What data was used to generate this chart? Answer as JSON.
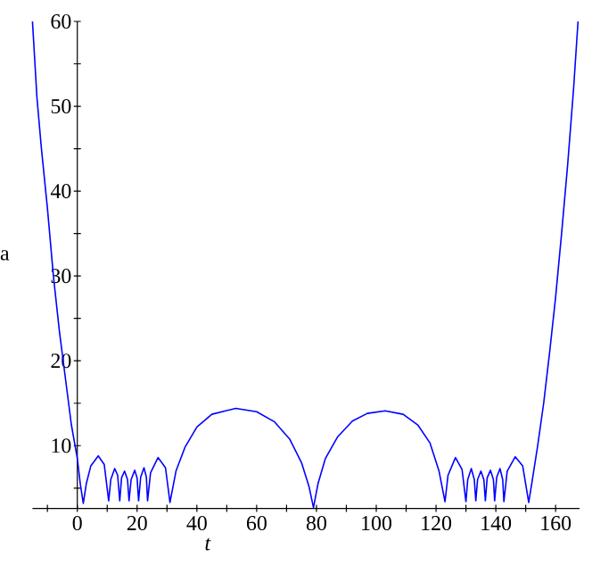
{
  "chart_data": {
    "type": "line",
    "xlabel": "t",
    "ylabel": "a",
    "xlim": [
      -15,
      168
    ],
    "ylim": [
      2.6,
      60
    ],
    "xticks": [
      {
        "value": -10,
        "label": null
      },
      0,
      {
        "value": 10,
        "label": null
      },
      20,
      {
        "value": 30,
        "label": null
      },
      40,
      {
        "value": 50,
        "label": null
      },
      60,
      {
        "value": 70,
        "label": null
      },
      80,
      {
        "value": 90,
        "label": null
      },
      100,
      {
        "value": 110,
        "label": null
      },
      120,
      {
        "value": 130,
        "label": null
      },
      140,
      {
        "value": 150,
        "label": null
      },
      160
    ],
    "yticks": [
      {
        "value": 5,
        "label": null
      },
      10,
      {
        "value": 15,
        "label": null
      },
      20,
      {
        "value": 25,
        "label": null
      },
      30,
      {
        "value": 35,
        "label": null
      },
      40,
      {
        "value": 45,
        "label": null
      },
      50,
      {
        "value": 55,
        "label": null
      },
      60
    ],
    "grid": false,
    "marker": "none",
    "line_style": "solid",
    "series": [
      {
        "color": "#0000ff",
        "x": [
          -15,
          -13.5,
          -12,
          -10,
          -8,
          -6,
          -4,
          -2,
          0,
          1,
          2,
          3,
          4.5,
          7,
          9,
          10.5,
          11.2,
          12.5,
          13.5,
          14.2,
          14.8,
          15.8,
          16.8,
          17.3,
          18,
          19.2,
          20,
          20.5,
          21.2,
          22.3,
          23.1,
          23.5,
          24.5,
          27,
          29.5,
          31,
          33,
          36,
          40,
          45,
          53,
          60,
          66,
          71,
          75,
          77.5,
          79,
          80.5,
          83,
          87,
          92,
          97,
          103,
          109,
          114,
          118,
          121,
          123,
          124,
          126.5,
          128.7,
          130,
          130.6,
          131.8,
          132.8,
          133.3,
          133.9,
          135,
          136,
          136.5,
          137.1,
          138.2,
          139.2,
          139.6,
          140.3,
          141.4,
          142.3,
          142.7,
          143.8,
          146.5,
          149,
          151,
          152,
          154,
          156,
          158,
          160,
          162,
          164,
          166,
          167.5
        ],
        "values": [
          60,
          51,
          45,
          38,
          30,
          23.5,
          18,
          12.5,
          8.5,
          5.5,
          3.2,
          5.5,
          7.6,
          8.8,
          7.8,
          3.5,
          6,
          7.3,
          6.5,
          3.5,
          6.2,
          7,
          6,
          3.5,
          6,
          7.1,
          6.2,
          3.5,
          6.3,
          7.4,
          6.3,
          3.5,
          6.8,
          8.6,
          7.4,
          3.3,
          7,
          9.8,
          12.2,
          13.7,
          14.4,
          14,
          12.8,
          10.8,
          8,
          5.2,
          2.7,
          5.5,
          8.5,
          11,
          12.9,
          13.8,
          14.1,
          13.7,
          12.4,
          10.3,
          7,
          3.4,
          6.5,
          8.6,
          7.2,
          3.4,
          6,
          7.3,
          6,
          3.5,
          6,
          7,
          6,
          3.5,
          6.2,
          7.1,
          6,
          3.5,
          6.3,
          7.3,
          6,
          3.4,
          7,
          8.7,
          7.6,
          3.3,
          5.5,
          10,
          15,
          21,
          27.5,
          35,
          43,
          52,
          60
        ]
      }
    ]
  }
}
